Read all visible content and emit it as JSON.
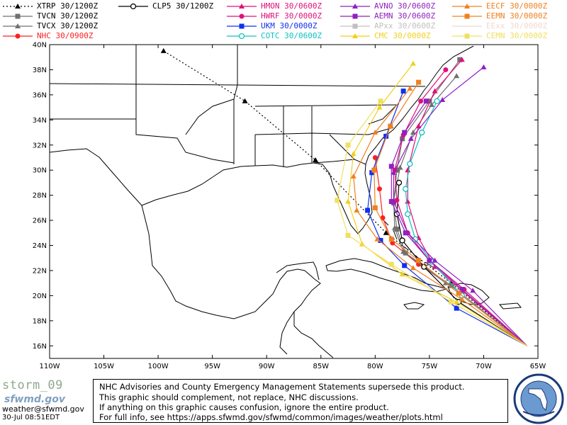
{
  "legend": [
    {
      "label": "XTRP  30/1200Z",
      "color": "#000000",
      "marker": "triangle",
      "dotted": true
    },
    {
      "label": "TVCN  30/1200Z",
      "color": "#707070",
      "marker": "square"
    },
    {
      "label": "TVCX  30/1200Z",
      "color": "#707070",
      "marker": "triangle"
    },
    {
      "label": "NHC   30/0900Z",
      "color": "#ff2020",
      "marker": "circle"
    },
    {
      "label": "CLP5  30/1200Z",
      "color": "#000000",
      "marker": "ring"
    },
    {
      "label": "HMON  30/0600Z",
      "color": "#e0107a",
      "marker": "triangle"
    },
    {
      "label": "HWRF  30/0000Z",
      "color": "#e0107a",
      "marker": "circle"
    },
    {
      "label": "UKM   30/0000Z",
      "color": "#1030f0",
      "marker": "square"
    },
    {
      "label": "COTC  30/0600Z",
      "color": "#10c0c0",
      "marker": "ring"
    },
    {
      "label": "AVNO  30/0600Z",
      "color": "#9020c0",
      "marker": "triangle"
    },
    {
      "label": "AEMN  30/0600Z",
      "color": "#9020c0",
      "marker": "square"
    },
    {
      "label": "APxx  30/0600Z",
      "color": "#c0c0c0",
      "marker": "square"
    },
    {
      "label": "CMC   30/0000Z",
      "color": "#f0d020",
      "marker": "triangle"
    },
    {
      "label": "EECF  30/0000Z",
      "color": "#f08020",
      "marker": "triangle"
    },
    {
      "label": "EEMN  30/0000Z",
      "color": "#f08020",
      "marker": "square"
    },
    {
      "label": "EExx  30/0000Z",
      "color": "#f0d8d0",
      "marker": "none"
    },
    {
      "label": "CEMN  30/0000Z",
      "color": "#f0e060",
      "marker": "square"
    }
  ],
  "axes": {
    "lat_labels": [
      "40N",
      "38N",
      "36N",
      "34N",
      "32N",
      "30N",
      "28N",
      "26N",
      "24N",
      "22N",
      "20N",
      "18N",
      "16N"
    ],
    "lon_labels": [
      "110W",
      "105W",
      "100W",
      "95W",
      "90W",
      "85W",
      "80W",
      "75W",
      "70W",
      "65W"
    ],
    "lat_range": [
      15,
      40
    ],
    "lon_range": [
      -110,
      -65
    ]
  },
  "map_data": {
    "tracks": [
      {
        "name": "XTRP",
        "color": "#000000",
        "dash": "2,3",
        "points": [
          [
            -66.0,
            16.0
          ],
          [
            -73.0,
            21.0
          ],
          [
            -79.0,
            25.0
          ],
          [
            -85.5,
            30.8
          ],
          [
            -92.0,
            35.5
          ],
          [
            -99.5,
            39.5
          ]
        ]
      },
      {
        "name": "NHC",
        "color": "#ff2020",
        "points": [
          [
            -72.5,
            20.5
          ],
          [
            -76.0,
            22.5
          ],
          [
            -78.4,
            24.2
          ],
          [
            -79.3,
            26.2
          ],
          [
            -79.6,
            28.5
          ],
          [
            -80.0,
            31.0
          ]
        ]
      },
      {
        "name": "TVCN",
        "color": "#707070",
        "points": [
          [
            -66.0,
            16.0
          ],
          [
            -73.0,
            20.8
          ],
          [
            -77.2,
            23.4
          ],
          [
            -78.0,
            25.3
          ],
          [
            -78.3,
            27.4
          ],
          [
            -78.0,
            30.0
          ],
          [
            -77.5,
            32.5
          ],
          [
            -75.0,
            35.5
          ],
          [
            -72.2,
            38.8
          ]
        ]
      },
      {
        "name": "TVCX",
        "color": "#707070",
        "points": [
          [
            -66.0,
            16.0
          ],
          [
            -73.5,
            21.0
          ],
          [
            -77.4,
            23.5
          ],
          [
            -78.2,
            25.4
          ],
          [
            -78.3,
            27.6
          ],
          [
            -77.7,
            30.2
          ],
          [
            -76.5,
            33.0
          ],
          [
            -74.8,
            35.2
          ],
          [
            -72.5,
            37.5
          ]
        ]
      },
      {
        "name": "CLP5",
        "color": "#000000",
        "points": [
          [
            -66.0,
            16.0
          ],
          [
            -72.3,
            19.5
          ],
          [
            -75.5,
            22.3
          ],
          [
            -77.5,
            24.4
          ],
          [
            -78.0,
            26.5
          ],
          [
            -77.8,
            29.0
          ]
        ]
      },
      {
        "name": "HMON",
        "color": "#e0107a",
        "points": [
          [
            -66.0,
            16.0
          ],
          [
            -72.0,
            20.4
          ],
          [
            -74.5,
            22.3
          ],
          [
            -76.0,
            24.6
          ],
          [
            -77.0,
            27.5
          ],
          [
            -77.0,
            30.0
          ],
          [
            -76.0,
            33.5
          ],
          [
            -74.5,
            36.3
          ],
          [
            -72.0,
            38.8
          ]
        ]
      },
      {
        "name": "HWRF",
        "color": "#e0107a",
        "points": [
          [
            -66.0,
            16.0
          ],
          [
            -71.8,
            20.5
          ],
          [
            -75.0,
            22.8
          ],
          [
            -77.0,
            25.0
          ],
          [
            -78.0,
            27.6
          ],
          [
            -78.2,
            30.0
          ],
          [
            -77.4,
            32.8
          ],
          [
            -75.8,
            35.5
          ],
          [
            -73.5,
            38.0
          ]
        ]
      },
      {
        "name": "UKM",
        "color": "#1030f0",
        "points": [
          [
            -66.0,
            16.0
          ],
          [
            -72.5,
            19.0
          ],
          [
            -77.3,
            22.4
          ],
          [
            -79.5,
            24.4
          ],
          [
            -80.7,
            26.8
          ],
          [
            -80.3,
            29.8
          ],
          [
            -79.0,
            32.7
          ],
          [
            -77.4,
            36.3
          ]
        ]
      },
      {
        "name": "COTC",
        "color": "#10c0c0",
        "points": [
          [
            -66.0,
            16.0
          ],
          [
            -72.0,
            20.0
          ],
          [
            -74.8,
            22.7
          ],
          [
            -76.3,
            24.5
          ],
          [
            -77.0,
            26.5
          ],
          [
            -77.2,
            28.5
          ],
          [
            -76.8,
            30.5
          ],
          [
            -75.7,
            33.0
          ],
          [
            -74.3,
            35.5
          ]
        ]
      },
      {
        "name": "AVNO",
        "color": "#9020c0",
        "points": [
          [
            -66.0,
            16.0
          ],
          [
            -71.0,
            20.4
          ],
          [
            -74.5,
            22.8
          ],
          [
            -77.0,
            25.0
          ],
          [
            -78.3,
            27.5
          ],
          [
            -78.3,
            29.8
          ],
          [
            -76.7,
            32.5
          ],
          [
            -73.8,
            35.6
          ],
          [
            -70.0,
            38.2
          ]
        ]
      },
      {
        "name": "AEMN",
        "color": "#9020c0",
        "points": [
          [
            -66.0,
            16.0
          ],
          [
            -72.0,
            20.5
          ],
          [
            -75.0,
            22.8
          ],
          [
            -77.2,
            25.0
          ],
          [
            -78.5,
            27.5
          ],
          [
            -78.5,
            30.3
          ],
          [
            -77.3,
            33.0
          ],
          [
            -75.3,
            35.5
          ]
        ]
      },
      {
        "name": "CMC",
        "color": "#f0d020",
        "points": [
          [
            -66.0,
            16.0
          ],
          [
            -72.5,
            19.5
          ],
          [
            -77.5,
            21.7
          ],
          [
            -81.2,
            24.1
          ],
          [
            -82.5,
            27.5
          ],
          [
            -82.0,
            31.3
          ],
          [
            -79.6,
            35.0
          ],
          [
            -76.5,
            38.5
          ]
        ]
      },
      {
        "name": "EECF",
        "color": "#f08020",
        "points": [
          [
            -66.0,
            16.0
          ],
          [
            -72.0,
            19.7
          ],
          [
            -76.5,
            22.2
          ],
          [
            -79.8,
            24.5
          ],
          [
            -81.7,
            26.8
          ],
          [
            -82.0,
            29.5
          ],
          [
            -80.0,
            33.0
          ],
          [
            -76.8,
            36.5
          ]
        ]
      },
      {
        "name": "EEMN",
        "color": "#f08020",
        "points": [
          [
            -66.0,
            16.0
          ],
          [
            -72.3,
            20.2
          ],
          [
            -76.0,
            22.8
          ],
          [
            -78.5,
            24.5
          ],
          [
            -80.0,
            27.0
          ],
          [
            -80.1,
            30.0
          ],
          [
            -78.6,
            33.5
          ],
          [
            -76.0,
            37.0
          ]
        ]
      },
      {
        "name": "CEMN",
        "color": "#f0e060",
        "points": [
          [
            -66.0,
            16.0
          ],
          [
            -73.0,
            19.5
          ],
          [
            -78.5,
            22.5
          ],
          [
            -82.5,
            24.8
          ],
          [
            -83.5,
            27.6
          ],
          [
            -82.5,
            32.0
          ],
          [
            -79.5,
            35.5
          ]
        ]
      }
    ]
  },
  "footer": {
    "lines": [
      "NHC Advisories and County Emergency Management Statements supersede this product.",
      "This graphic should complement, not replace, NHC discussions.",
      "If anything on this graphic causes confusion, ignore the entire product.",
      "For full info, see   https://apps.sfwmd.gov/sfwmd/common/images/weather/plots.html"
    ]
  },
  "storm_name": "storm_09",
  "logo_text": "sfwmd.gov",
  "email": "weather@sfwmd.gov",
  "timestamp": "30-Jul 08:51EDT"
}
